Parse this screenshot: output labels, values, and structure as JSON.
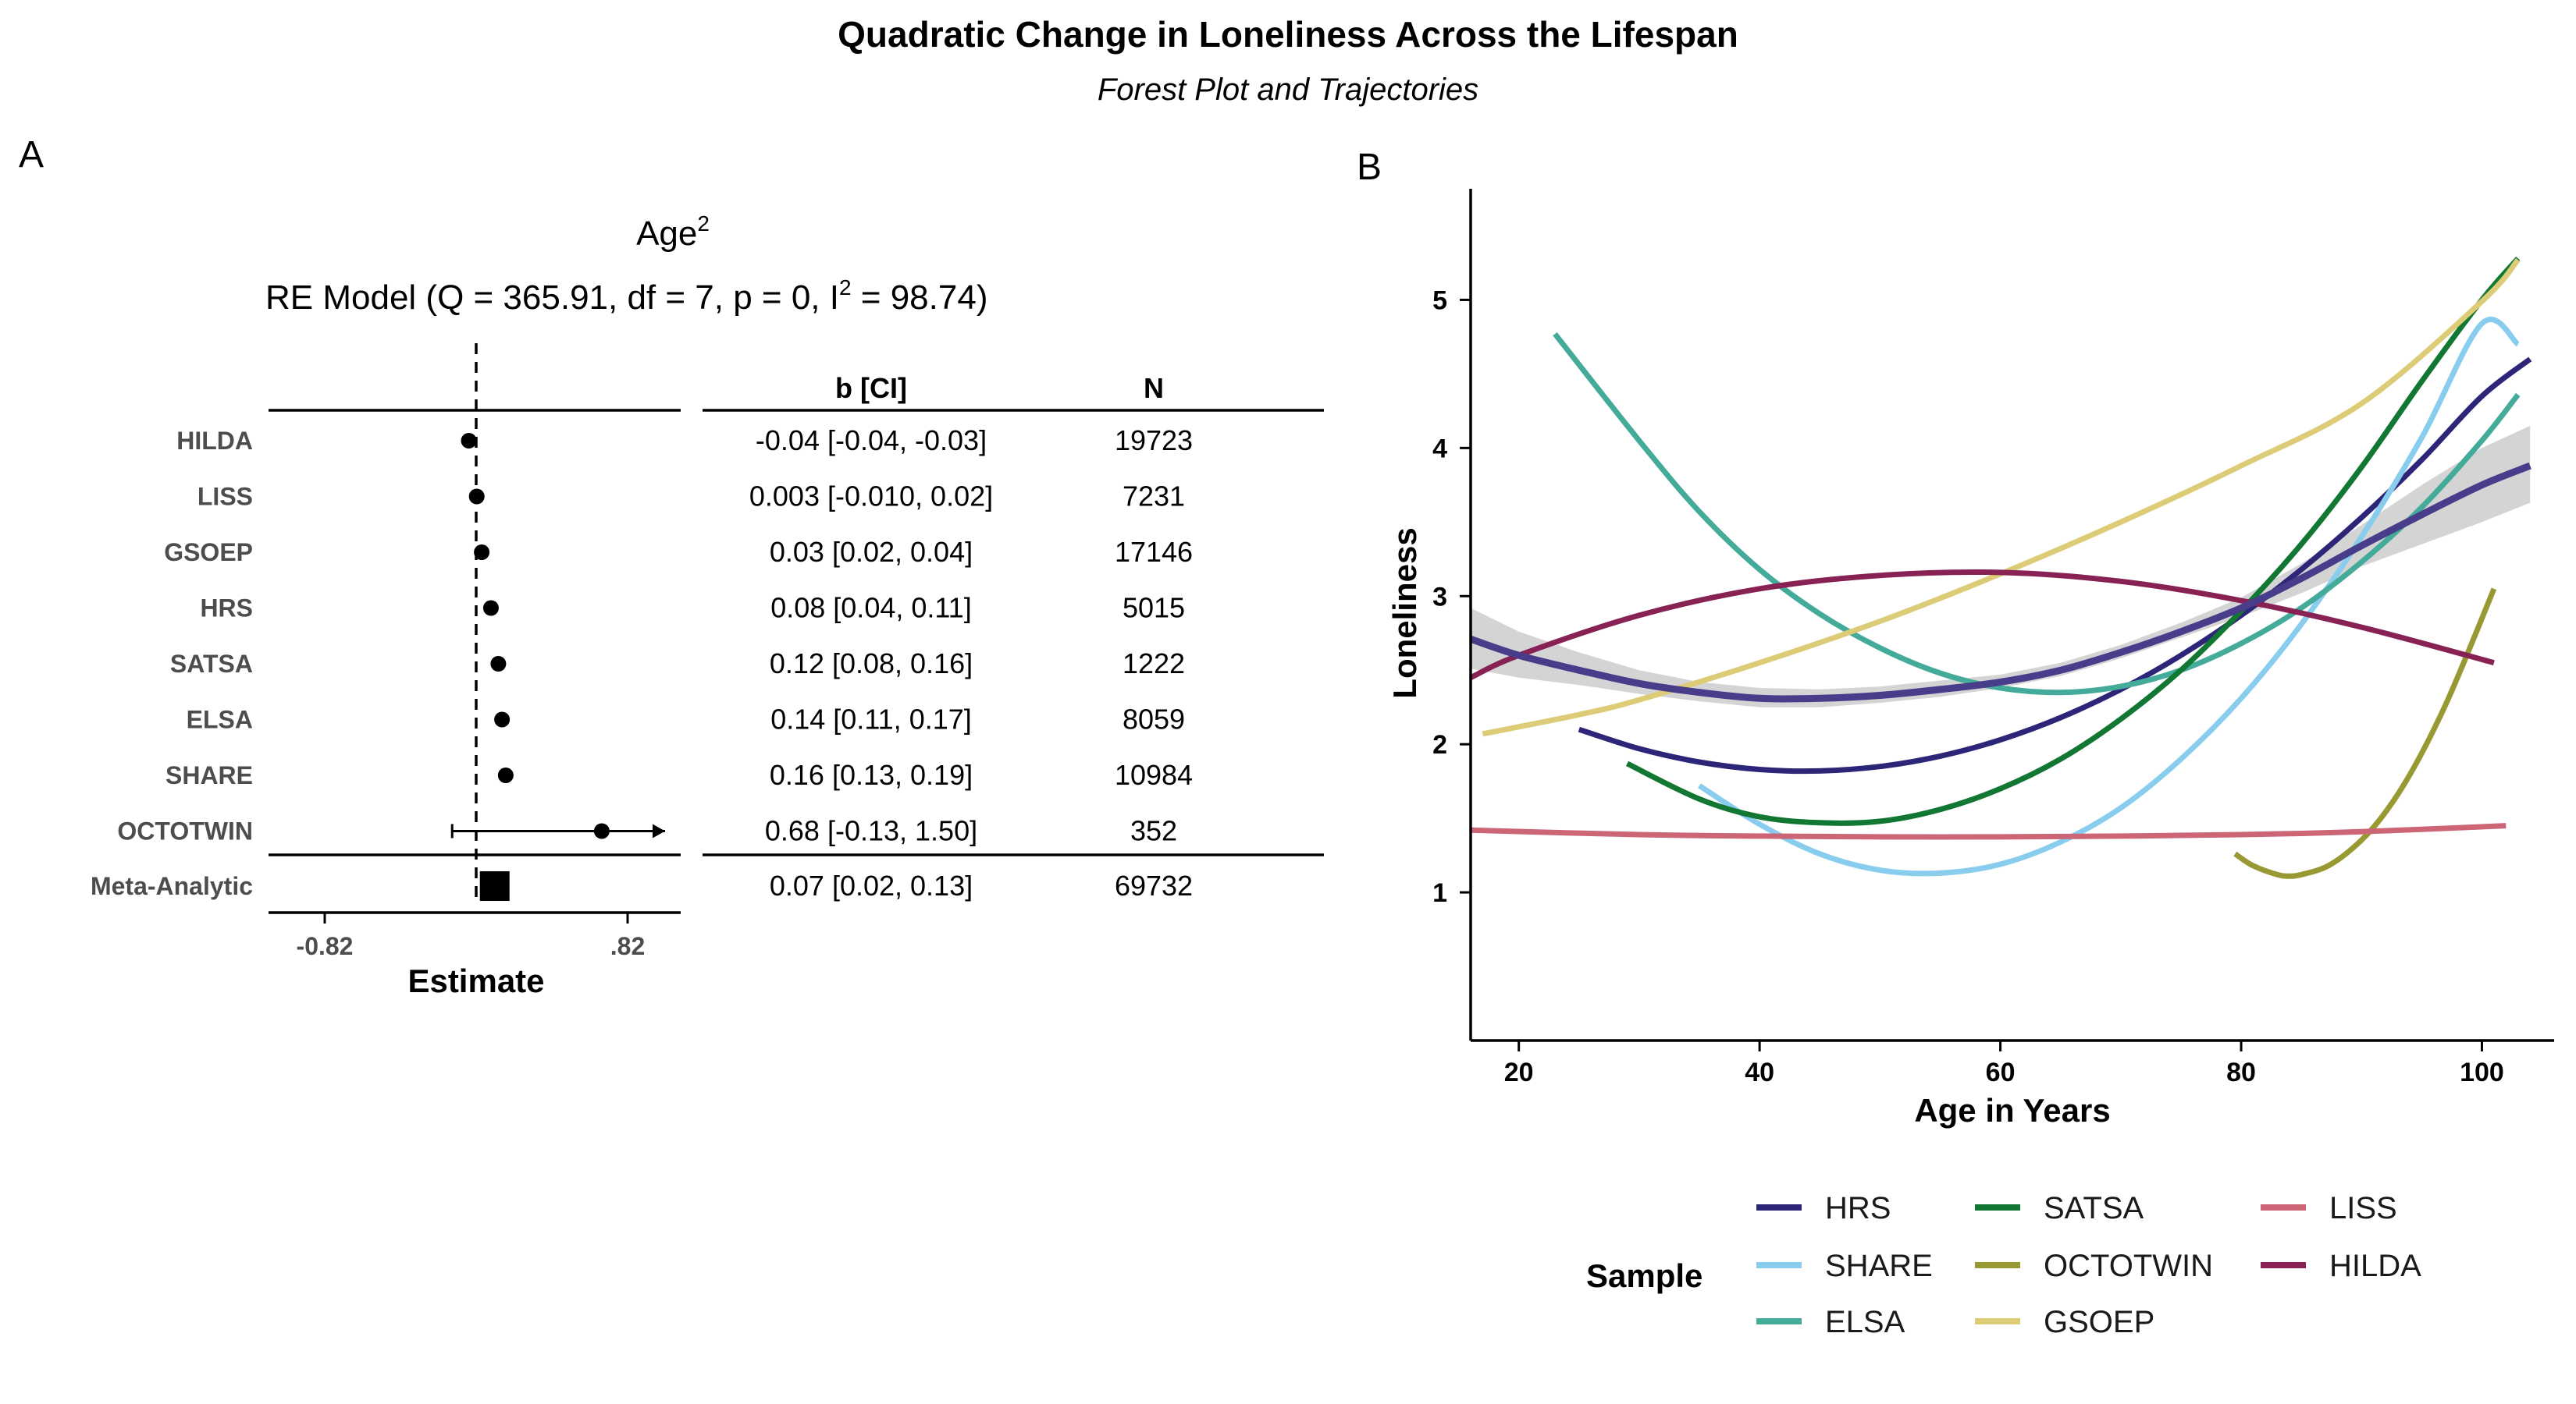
{
  "figure": {
    "title": "Quadratic Change in Loneliness Across the Lifespan",
    "subtitle": "Forest Plot and Trajectories"
  },
  "panel_a": {
    "label": "A",
    "term": "Age",
    "term_superscript": "2",
    "model_prefix": "RE Model (Q = 365.91, df = 7, p = 0, I",
    "model_superscript": "2",
    "model_suffix": " = 98.74)",
    "xlabel": "Estimate",
    "ticks": [
      "-0.82",
      ".82"
    ],
    "col_b_header": "b [CI]",
    "col_n_header": "N"
  },
  "panel_b": {
    "label": "B",
    "xlabel": "Age in Years",
    "ylabel": "Loneliness",
    "legend_title": "Sample"
  },
  "chart_data": [
    {
      "type": "forest",
      "x_range": [
        -0.82,
        0.82
      ],
      "x_ticks": [
        -0.82,
        0.82
      ],
      "reference_line": 0,
      "studies": [
        {
          "name": "HILDA",
          "estimate": -0.04,
          "lower": -0.04,
          "upper": -0.03,
          "ci_text": "-0.04 [-0.04, -0.03]",
          "n": "19723"
        },
        {
          "name": "LISS",
          "estimate": 0.003,
          "lower": -0.01,
          "upper": 0.02,
          "ci_text": "0.003 [-0.010, 0.02]",
          "n": "7231"
        },
        {
          "name": "GSOEP",
          "estimate": 0.03,
          "lower": 0.02,
          "upper": 0.04,
          "ci_text": "0.03 [0.02, 0.04]",
          "n": "17146"
        },
        {
          "name": "HRS",
          "estimate": 0.08,
          "lower": 0.04,
          "upper": 0.11,
          "ci_text": "0.08 [0.04, 0.11]",
          "n": "5015"
        },
        {
          "name": "SATSA",
          "estimate": 0.12,
          "lower": 0.08,
          "upper": 0.16,
          "ci_text": "0.12 [0.08, 0.16]",
          "n": "1222"
        },
        {
          "name": "ELSA",
          "estimate": 0.14,
          "lower": 0.11,
          "upper": 0.17,
          "ci_text": "0.14 [0.11, 0.17]",
          "n": "8059"
        },
        {
          "name": "SHARE",
          "estimate": 0.16,
          "lower": 0.13,
          "upper": 0.19,
          "ci_text": "0.16 [0.13, 0.19]",
          "n": "10984"
        },
        {
          "name": "OCTOTWIN",
          "estimate": 0.68,
          "lower": -0.13,
          "upper": 1.5,
          "ci_text": "0.68 [-0.13, 1.50]",
          "n": "352"
        }
      ],
      "summary": {
        "name": "Meta-Analytic",
        "estimate": 0.07,
        "lower": 0.02,
        "upper": 0.13,
        "ci_text": "0.07 [0.02, 0.13]",
        "n": "69732"
      }
    },
    {
      "type": "line",
      "x_range": [
        16,
        106
      ],
      "y_range": [
        0,
        5.75
      ],
      "x_ticks": [
        20,
        40,
        60,
        80,
        100
      ],
      "y_ticks": [
        1,
        2,
        3,
        4,
        5
      ],
      "grid": false,
      "legend_position": "bottom",
      "series": [
        {
          "name": "HRS",
          "color": "#2d2678",
          "x": [
            25,
            30,
            35,
            40,
            45,
            50,
            55,
            60,
            65,
            70,
            75,
            80,
            85,
            90,
            95,
            100,
            104
          ],
          "y": [
            2.1,
            1.97,
            1.88,
            1.83,
            1.82,
            1.85,
            1.92,
            2.03,
            2.18,
            2.37,
            2.6,
            2.87,
            3.18,
            3.53,
            3.92,
            4.35,
            4.6
          ]
        },
        {
          "name": "SHARE",
          "color": "#88ccee",
          "x": [
            35,
            40,
            45,
            50,
            55,
            60,
            65,
            70,
            75,
            80,
            85,
            90,
            95,
            100,
            103
          ],
          "y": [
            1.72,
            1.46,
            1.26,
            1.15,
            1.13,
            1.19,
            1.34,
            1.57,
            1.9,
            2.31,
            2.81,
            3.4,
            4.07,
            4.84,
            4.7
          ]
        },
        {
          "name": "ELSA",
          "color": "#44aa99",
          "x": [
            23,
            30,
            35,
            40,
            45,
            50,
            55,
            60,
            65,
            70,
            75,
            80,
            85,
            90,
            95,
            100,
            103
          ],
          "y": [
            4.77,
            4.05,
            3.57,
            3.18,
            2.88,
            2.65,
            2.48,
            2.38,
            2.35,
            2.39,
            2.5,
            2.68,
            2.92,
            3.23,
            3.6,
            4.05,
            4.36
          ]
        },
        {
          "name": "SATSA",
          "color": "#117733",
          "x": [
            29,
            35,
            40,
            45,
            50,
            55,
            60,
            65,
            70,
            75,
            80,
            85,
            90,
            95,
            100,
            103
          ],
          "y": [
            1.87,
            1.63,
            1.51,
            1.47,
            1.48,
            1.56,
            1.7,
            1.9,
            2.17,
            2.5,
            2.9,
            3.35,
            3.87,
            4.45,
            5.0,
            5.28
          ]
        },
        {
          "name": "OCTOTWIN",
          "color": "#999933",
          "x": [
            79.5,
            81,
            83,
            84,
            85,
            87,
            89,
            91,
            93,
            95,
            97,
            99,
            101
          ],
          "y": [
            1.26,
            1.18,
            1.12,
            1.11,
            1.12,
            1.17,
            1.28,
            1.44,
            1.66,
            1.94,
            2.27,
            2.65,
            3.05
          ]
        },
        {
          "name": "GSOEP",
          "color": "#ddcc77",
          "x": [
            17,
            25,
            30,
            40,
            50,
            60,
            70,
            80,
            90,
            100,
            103
          ],
          "y": [
            2.07,
            2.2,
            2.3,
            2.55,
            2.83,
            3.15,
            3.5,
            3.88,
            4.3,
            4.99,
            5.27
          ]
        },
        {
          "name": "LISS",
          "color": "#cc6677",
          "x": [
            16,
            30,
            40,
            50,
            60,
            70,
            80,
            90,
            102
          ],
          "y": [
            1.42,
            1.39,
            1.38,
            1.375,
            1.375,
            1.38,
            1.39,
            1.41,
            1.45
          ]
        },
        {
          "name": "HILDA",
          "color": "#882255",
          "x": [
            16,
            20,
            30,
            40,
            50,
            60,
            70,
            80,
            90,
            101
          ],
          "y": [
            2.45,
            2.6,
            2.87,
            3.05,
            3.14,
            3.16,
            3.1,
            2.97,
            2.79,
            2.55
          ]
        },
        {
          "name": "",
          "color": "#483d8b",
          "x": [
            16,
            20,
            25,
            30,
            35,
            40,
            45,
            50,
            55,
            60,
            65,
            70,
            75,
            80,
            85,
            90,
            95,
            100,
            104
          ],
          "y": [
            2.71,
            2.6,
            2.5,
            2.41,
            2.35,
            2.31,
            2.31,
            2.33,
            2.37,
            2.42,
            2.5,
            2.62,
            2.76,
            2.92,
            3.12,
            3.34,
            3.55,
            3.75,
            3.88
          ]
        }
      ],
      "ribbon": {
        "color": "#bdbdbd",
        "x": [
          16,
          20,
          25,
          30,
          35,
          40,
          45,
          50,
          55,
          60,
          65,
          70,
          75,
          80,
          85,
          90,
          95,
          100,
          104
        ],
        "lower": [
          2.51,
          2.45,
          2.4,
          2.34,
          2.29,
          2.25,
          2.25,
          2.28,
          2.32,
          2.38,
          2.46,
          2.58,
          2.72,
          2.86,
          3.02,
          3.2,
          3.35,
          3.5,
          3.63
        ],
        "upper": [
          2.92,
          2.76,
          2.62,
          2.5,
          2.42,
          2.38,
          2.37,
          2.39,
          2.43,
          2.47,
          2.55,
          2.67,
          2.82,
          2.99,
          3.22,
          3.48,
          3.75,
          4.0,
          4.15
        ]
      }
    }
  ]
}
